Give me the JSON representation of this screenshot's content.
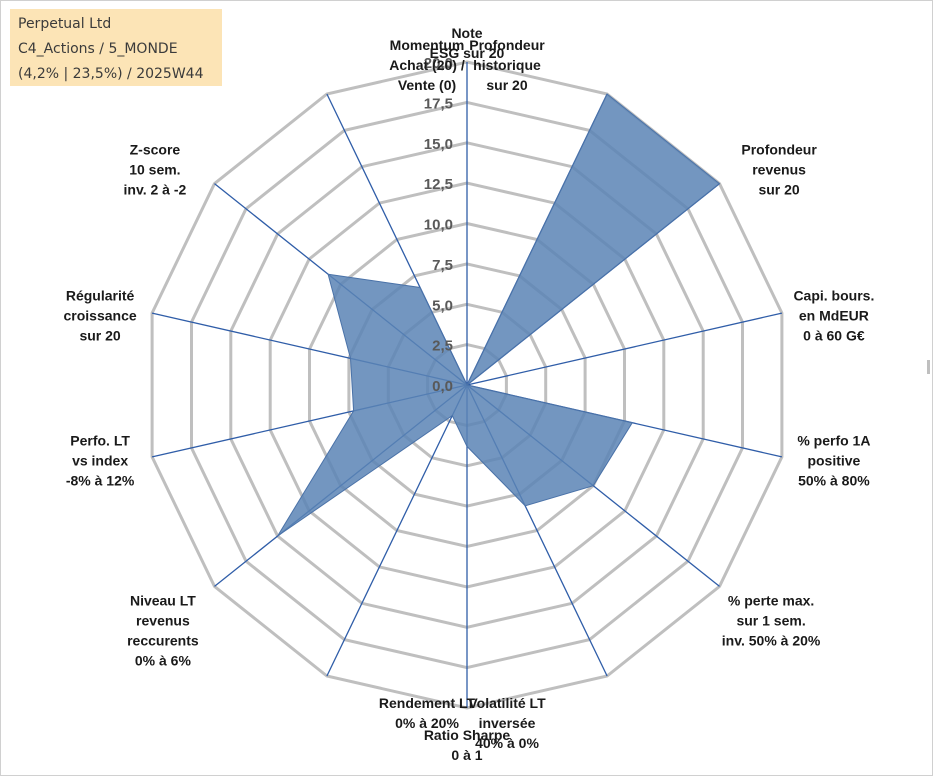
{
  "info_box": {
    "line1": "Perpetual Ltd",
    "line2": "C4_Actions / 5_MONDE",
    "line3": "(4,2% | 23,5%) / 2025W44"
  },
  "chart_data": {
    "type": "radar",
    "rlim": [
      0,
      20
    ],
    "ticks": [
      "0,0",
      "2,5",
      "5,0",
      "7,5",
      "10,0",
      "12,5",
      "15,0",
      "17,5",
      "20,0"
    ],
    "tick_values": [
      0,
      2.5,
      5,
      7.5,
      10,
      12.5,
      15,
      17.5,
      20
    ],
    "grid": true,
    "axes": [
      [
        "Note",
        "ESG sur 20"
      ],
      [
        "Profondeur",
        "historique",
        "sur 20"
      ],
      [
        "Profondeur",
        "revenus",
        "sur 20"
      ],
      [
        "Capi. bours.",
        "en MdEUR",
        "0 à 60 G€"
      ],
      [
        "% perfo 1A",
        "positive",
        "50% à 80%"
      ],
      [
        "% perte max.",
        "sur 1 sem.",
        "inv. 50% à 20%"
      ],
      [
        "Volatilité LT",
        "inversée",
        "40% à 0%"
      ],
      [
        "Ratio Sharpe",
        "0 à 1"
      ],
      [
        "Rendement LT",
        "0% à 20%"
      ],
      [
        "Niveau LT",
        "revenus",
        "reccurents",
        "0% à 6%"
      ],
      [
        "Perfo. LT",
        "vs index",
        "-8% à 12%"
      ],
      [
        "Régularité",
        "croissance",
        "sur 20"
      ],
      [
        "Z-score",
        "10 sem.",
        "inv. 2 à -2"
      ],
      [
        "Momentum",
        "Achat (20) /",
        "Vente (0)"
      ]
    ],
    "series": [
      {
        "values": [
          0,
          20,
          20,
          0,
          10.5,
          10,
          8.3,
          3.8,
          2.1,
          15,
          7.2,
          7.4,
          11,
          6.7
        ],
        "color": "#5b84b5"
      }
    ]
  }
}
